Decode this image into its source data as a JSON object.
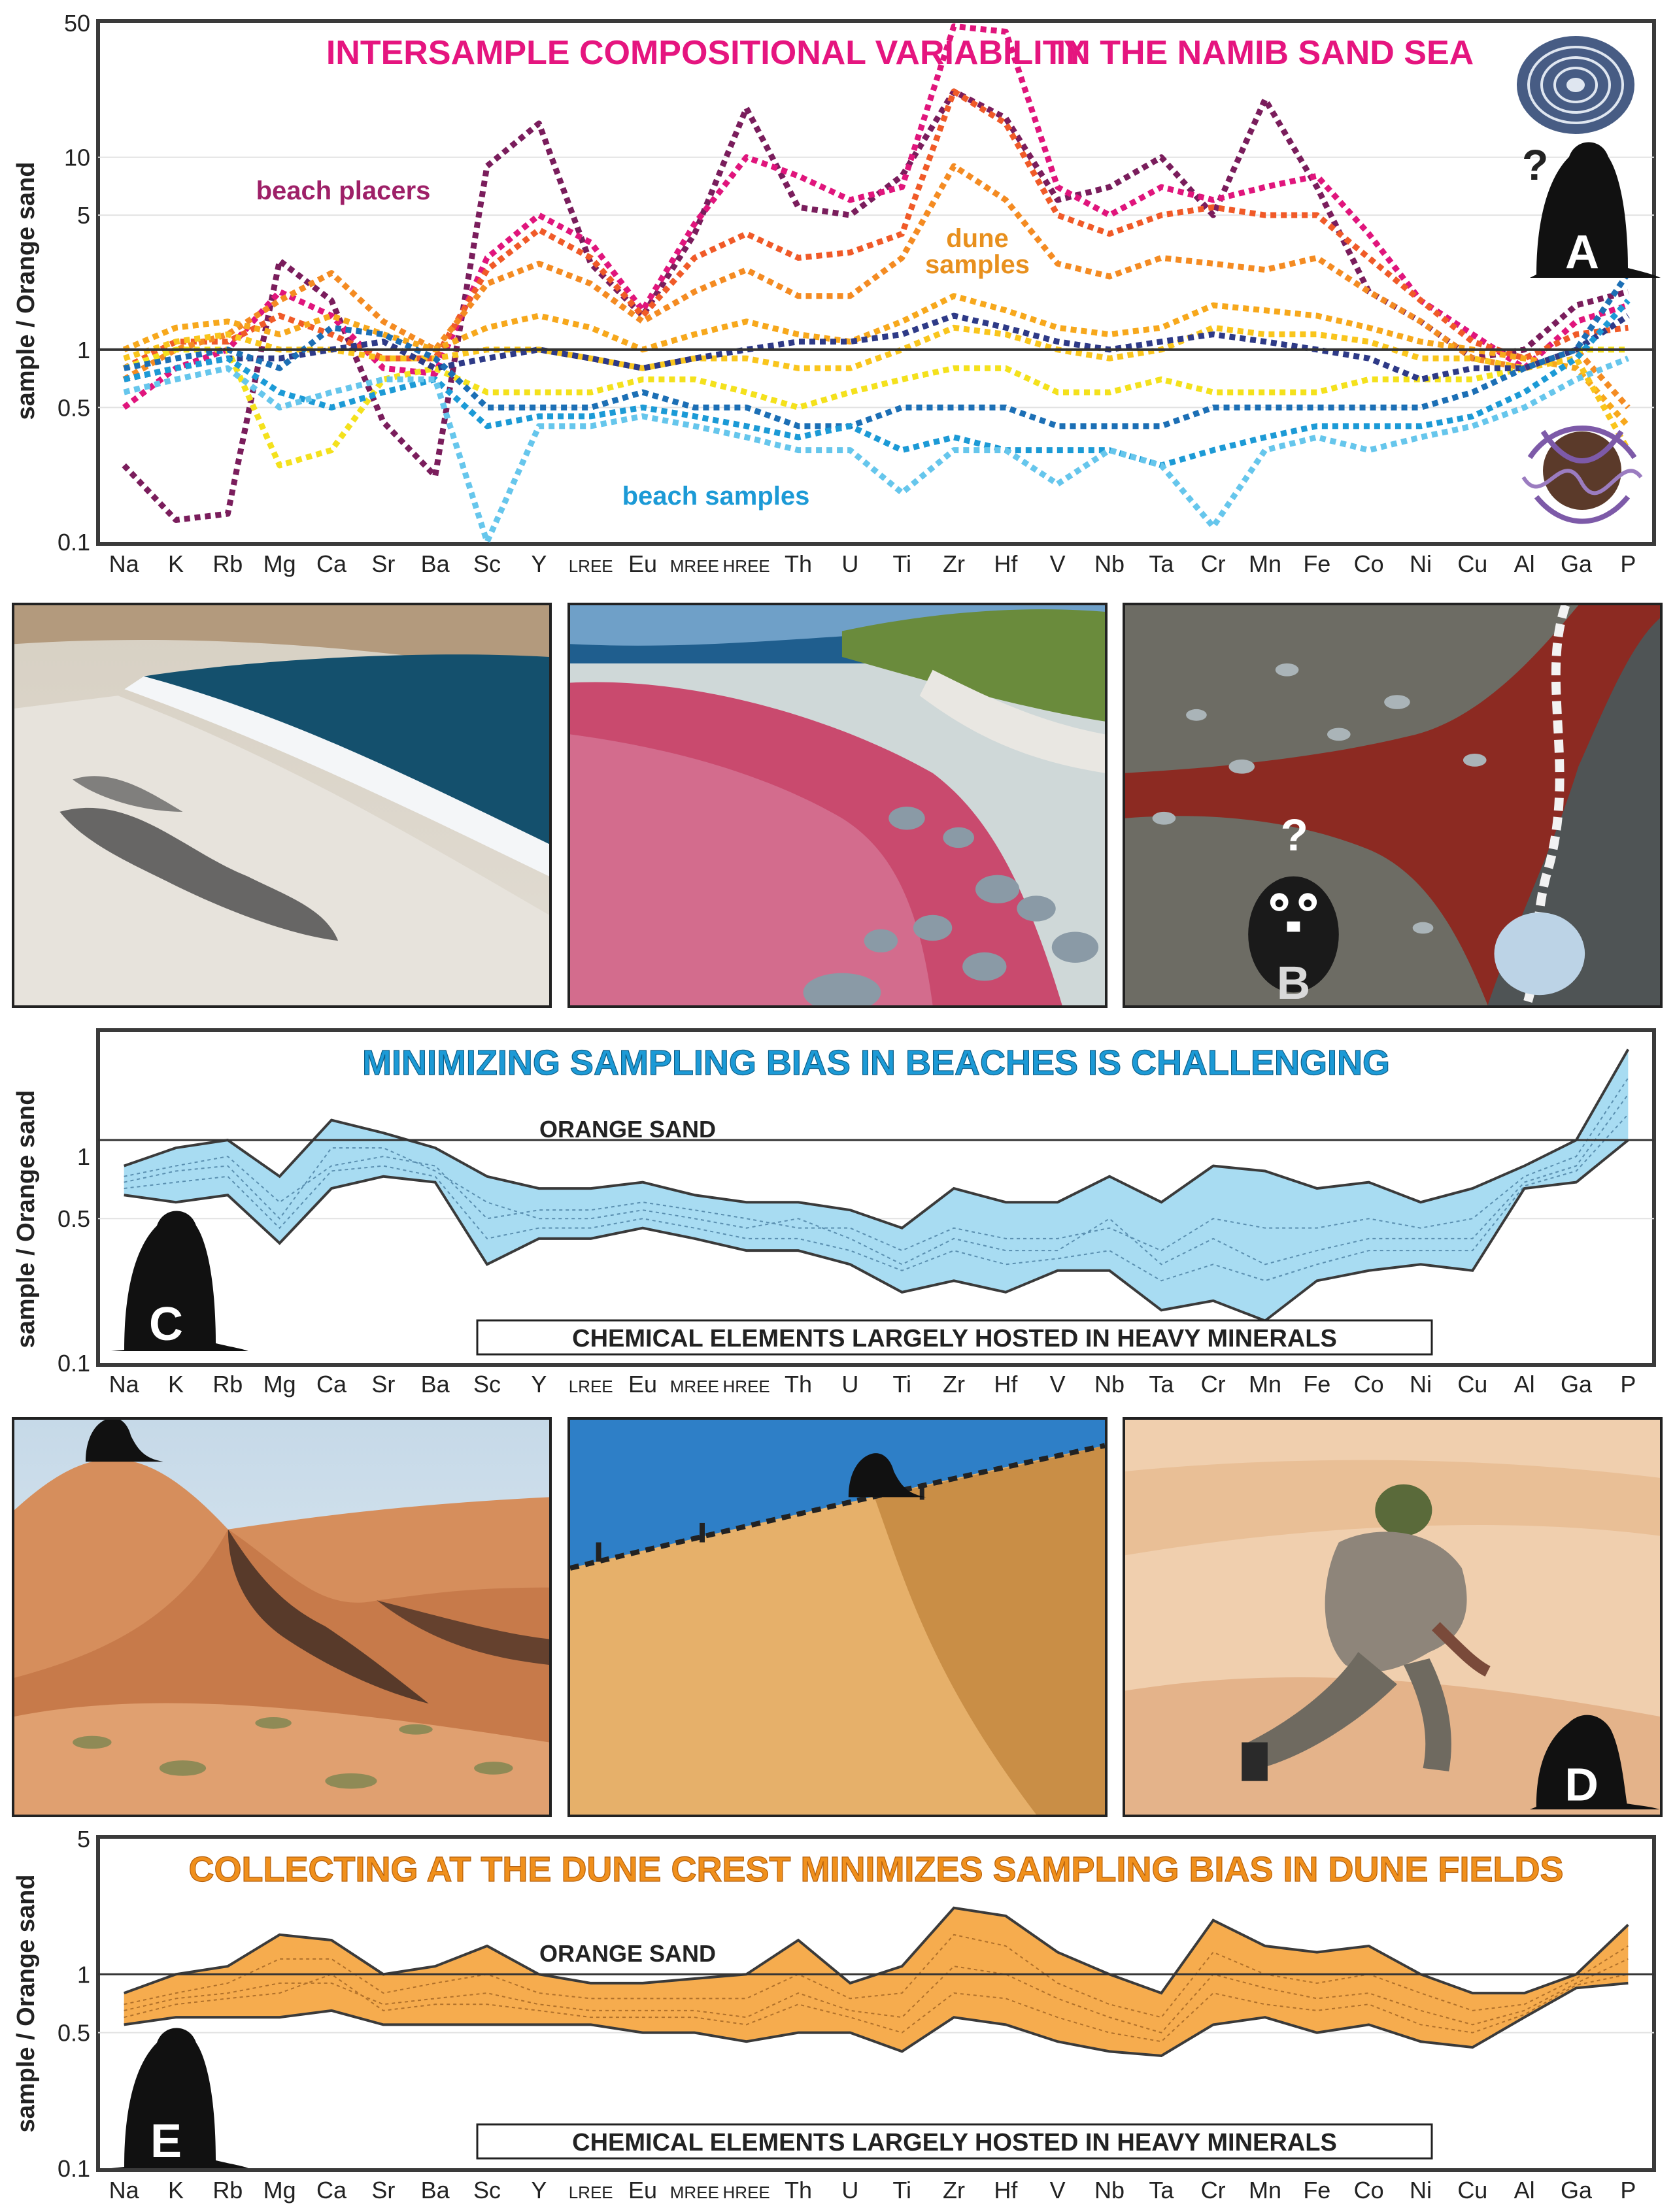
{
  "elements": [
    "Na",
    "K",
    "Rb",
    "Mg",
    "Ca",
    "Sr",
    "Ba",
    "Sc",
    "Y",
    "LREE",
    "Eu",
    "MREE",
    "HREE",
    "Th",
    "U",
    "Ti",
    "Zr",
    "Hf",
    "V",
    "Nb",
    "Ta",
    "Cr",
    "Mn",
    "Fe",
    "Co",
    "Ni",
    "Cu",
    "Al",
    "Ga",
    "P"
  ],
  "colors": {
    "title_pink": "#e5157f",
    "placers": "#7a1d5c",
    "dune": "#f0901c",
    "beach": "#1c9ad6",
    "envelope_blue": "#a8dcf2",
    "envelope_orange": "#f6ac4e"
  },
  "photos": [
    {
      "name": "beach-photo-1",
      "subject": "beach with dark placer streaks and surf"
    },
    {
      "name": "beach-photo-2",
      "subject": "red garnet placer beach with cobbles"
    },
    {
      "name": "beach-photo-3",
      "subject": "dark and red placer sand with cobbles",
      "label": "B",
      "mark": "?"
    },
    {
      "name": "dune-photo-1",
      "subject": "red dune field with dry grass"
    },
    {
      "name": "dune-photo-2",
      "subject": "dune crest with walkers"
    },
    {
      "name": "dune-photo-3",
      "subject": "geologist sampling dune sand",
      "label": "D"
    }
  ],
  "chart_data": [
    {
      "panel": "A",
      "type": "line",
      "title_left": "INTERSAMPLE COMPOSITIONAL VARIABILITY",
      "title_right": "IN THE NAMIB SAND SEA",
      "ylabel": "sample / Orange sand",
      "yscale": "log",
      "ylim": [
        0.1,
        50
      ],
      "yticks": [
        "0.1",
        "0.5",
        "1",
        "5",
        "10",
        "50"
      ],
      "reference_line": 1,
      "panel_label": "A",
      "question_mark": "?",
      "annotations": [
        {
          "text": "beach placers",
          "color": "#9e2068"
        },
        {
          "text": "dune",
          "color": "#e8901e"
        },
        {
          "text": "samples",
          "color": "#e8901e"
        },
        {
          "text": "beach samples",
          "color": "#1c9ad6"
        }
      ],
      "series": [
        {
          "color": "#7a1d5c",
          "values": [
            0.25,
            0.13,
            0.14,
            2.9,
            1.8,
            0.42,
            0.22,
            9,
            15,
            2.8,
            1.5,
            4,
            18,
            5.5,
            5,
            8,
            22,
            16,
            6,
            7,
            10,
            5,
            20,
            7,
            2,
            1.4,
            0.9,
            1.0,
            1.7,
            2.0
          ]
        },
        {
          "color": "#e0157c",
          "values": [
            0.5,
            0.8,
            1.0,
            2.0,
            1.5,
            0.8,
            0.75,
            3,
            5,
            3.6,
            1.6,
            4.5,
            10,
            8,
            6,
            7,
            48,
            45,
            7,
            5,
            7,
            6,
            7,
            8,
            4,
            1.8,
            1.2,
            0.8,
            1.4,
            1.7
          ]
        },
        {
          "color": "#f05a28",
          "values": [
            0.8,
            1.1,
            1.1,
            1.5,
            1.2,
            0.9,
            0.9,
            2.6,
            4.2,
            3.0,
            1.5,
            3,
            4,
            3,
            3.2,
            4,
            22,
            15,
            5,
            4,
            5,
            5.5,
            5,
            5,
            3,
            1.8,
            1.1,
            0.9,
            1.2,
            1.3
          ]
        },
        {
          "color": "#f48b22",
          "values": [
            0.7,
            1.0,
            1.2,
            1.8,
            2.5,
            1.4,
            1.0,
            2.2,
            2.8,
            2.2,
            1.4,
            2,
            2.6,
            1.9,
            1.9,
            3,
            9,
            6,
            2.8,
            2.4,
            3,
            2.8,
            2.6,
            3,
            2,
            1.4,
            0.9,
            0.8,
            1.0,
            0.5
          ]
        },
        {
          "color": "#f7a81c",
          "values": [
            1.0,
            1.3,
            1.4,
            1.2,
            1.5,
            1.2,
            1.0,
            1.3,
            1.5,
            1.3,
            1.0,
            1.2,
            1.4,
            1.2,
            1.1,
            1.4,
            1.9,
            1.6,
            1.3,
            1.2,
            1.3,
            1.7,
            1.6,
            1.5,
            1.3,
            1.1,
            1.0,
            0.9,
            0.8,
            0.4
          ]
        },
        {
          "color": "#f9c51c",
          "values": [
            0.9,
            1.1,
            1.2,
            1.0,
            1.0,
            0.9,
            0.9,
            1.0,
            1.0,
            0.9,
            0.8,
            0.9,
            0.9,
            0.8,
            0.8,
            1.0,
            1.3,
            1.2,
            1.0,
            0.9,
            1.0,
            1.3,
            1.2,
            1.2,
            1.1,
            0.9,
            0.9,
            0.8,
            0.9,
            0.3
          ]
        },
        {
          "color": "#f4e11c",
          "values": [
            0.8,
            1.0,
            1.0,
            0.25,
            0.3,
            0.7,
            0.8,
            0.6,
            0.6,
            0.6,
            0.7,
            0.7,
            0.6,
            0.5,
            0.6,
            0.7,
            0.8,
            0.8,
            0.6,
            0.6,
            0.7,
            0.6,
            0.6,
            0.6,
            0.7,
            0.7,
            0.7,
            0.8,
            1.0,
            1.0
          ]
        },
        {
          "color": "#2e3a87",
          "values": [
            0.7,
            0.8,
            0.9,
            0.9,
            1.0,
            1.1,
            0.8,
            0.9,
            1.0,
            0.9,
            0.8,
            0.9,
            1.0,
            1.1,
            1.1,
            1.2,
            1.5,
            1.3,
            1.1,
            1.0,
            1.1,
            1.2,
            1.1,
            1.0,
            0.9,
            0.7,
            0.8,
            0.8,
            1.0,
            1.5
          ]
        },
        {
          "color": "#1c6fb5",
          "values": [
            0.8,
            0.9,
            1.0,
            0.8,
            1.3,
            1.2,
            0.9,
            0.5,
            0.5,
            0.5,
            0.6,
            0.5,
            0.5,
            0.4,
            0.4,
            0.5,
            0.5,
            0.5,
            0.4,
            0.4,
            0.4,
            0.5,
            0.5,
            0.5,
            0.5,
            0.5,
            0.6,
            0.8,
            1.0,
            2.5
          ]
        },
        {
          "color": "#1c9ad6",
          "values": [
            0.7,
            0.8,
            0.9,
            0.6,
            0.5,
            0.6,
            0.7,
            0.4,
            0.45,
            0.45,
            0.5,
            0.45,
            0.4,
            0.35,
            0.4,
            0.3,
            0.35,
            0.3,
            0.3,
            0.3,
            0.25,
            0.3,
            0.35,
            0.4,
            0.4,
            0.4,
            0.45,
            0.6,
            0.9,
            1.8
          ]
        },
        {
          "color": "#66c6ec",
          "values": [
            0.6,
            0.7,
            0.8,
            0.5,
            0.6,
            0.7,
            0.7,
            0.1,
            0.4,
            0.4,
            0.45,
            0.4,
            0.35,
            0.3,
            0.3,
            0.18,
            0.3,
            0.3,
            0.2,
            0.3,
            0.25,
            0.12,
            0.3,
            0.35,
            0.3,
            0.35,
            0.4,
            0.5,
            0.7,
            0.9
          ]
        }
      ]
    },
    {
      "panel": "C",
      "type": "area",
      "title": "MINIMIZING SAMPLING BIAS IN BEACHES IS CHALLENGING",
      "ylabel": "sample / Orange sand",
      "yscale": "log",
      "ylim": [
        0.1,
        4
      ],
      "yticks": [
        "0.1",
        "0.5",
        "1"
      ],
      "reference_label": "ORANGE SAND",
      "reference_value": 1.2,
      "box_text": "CHEMICAL ELEMENTS LARGELY HOSTED IN HEAVY MINERALS",
      "panel_label": "C",
      "upper": [
        0.9,
        1.1,
        1.2,
        0.8,
        1.5,
        1.3,
        1.1,
        0.8,
        0.7,
        0.7,
        0.75,
        0.65,
        0.6,
        0.6,
        0.55,
        0.45,
        0.7,
        0.6,
        0.6,
        0.8,
        0.6,
        0.9,
        0.85,
        0.7,
        0.75,
        0.6,
        0.7,
        0.9,
        1.2,
        3.3
      ],
      "lower": [
        0.65,
        0.6,
        0.65,
        0.38,
        0.7,
        0.8,
        0.75,
        0.3,
        0.4,
        0.4,
        0.45,
        0.4,
        0.35,
        0.35,
        0.3,
        0.22,
        0.25,
        0.22,
        0.28,
        0.28,
        0.18,
        0.2,
        0.16,
        0.25,
        0.28,
        0.3,
        0.28,
        0.7,
        0.75,
        1.2
      ],
      "series": [
        [
          0.8,
          0.9,
          1.0,
          0.6,
          0.9,
          1.0,
          0.9,
          0.5,
          0.55,
          0.55,
          0.6,
          0.55,
          0.5,
          0.45,
          0.45,
          0.35,
          0.45,
          0.4,
          0.4,
          0.45,
          0.35,
          0.5,
          0.45,
          0.45,
          0.5,
          0.45,
          0.5,
          0.8,
          1.0,
          2.4
        ],
        [
          0.75,
          0.85,
          0.9,
          0.5,
          1.1,
          1.1,
          0.85,
          0.6,
          0.5,
          0.5,
          0.55,
          0.5,
          0.45,
          0.5,
          0.4,
          0.3,
          0.4,
          0.35,
          0.35,
          0.5,
          0.3,
          0.4,
          0.3,
          0.35,
          0.4,
          0.4,
          0.4,
          0.75,
          0.9,
          2.0
        ],
        [
          0.7,
          0.75,
          0.8,
          0.45,
          0.85,
          0.9,
          0.8,
          0.4,
          0.45,
          0.45,
          0.5,
          0.45,
          0.4,
          0.4,
          0.35,
          0.28,
          0.35,
          0.3,
          0.32,
          0.35,
          0.25,
          0.3,
          0.25,
          0.3,
          0.35,
          0.35,
          0.35,
          0.72,
          0.85,
          1.6
        ]
      ]
    },
    {
      "panel": "E",
      "type": "area",
      "title": "COLLECTING AT THE DUNE CREST MINIMIZES SAMPLING BIAS IN DUNE FIELDS",
      "ylabel": "sample / Orange sand",
      "yscale": "log",
      "ylim": [
        0.1,
        5
      ],
      "yticks": [
        "0.1",
        "0.5",
        "1",
        "5"
      ],
      "reference_label": "ORANGE SAND",
      "reference_value": 1,
      "box_text": "CHEMICAL ELEMENTS LARGELY HOSTED IN HEAVY MINERALS",
      "panel_label": "E",
      "upper": [
        0.8,
        1.0,
        1.1,
        1.6,
        1.5,
        1.0,
        1.1,
        1.4,
        1.0,
        0.9,
        0.9,
        0.95,
        1.0,
        1.5,
        0.9,
        1.1,
        2.2,
        2.0,
        1.3,
        1.0,
        0.8,
        1.9,
        1.4,
        1.3,
        1.4,
        1.0,
        0.8,
        0.8,
        1.0,
        1.8
      ],
      "lower": [
        0.55,
        0.6,
        0.6,
        0.6,
        0.65,
        0.55,
        0.55,
        0.55,
        0.55,
        0.55,
        0.5,
        0.5,
        0.45,
        0.5,
        0.5,
        0.4,
        0.6,
        0.55,
        0.45,
        0.4,
        0.38,
        0.55,
        0.6,
        0.5,
        0.55,
        0.45,
        0.42,
        0.6,
        0.85,
        0.9
      ],
      "series": [
        [
          0.7,
          0.8,
          0.9,
          1.2,
          1.2,
          0.8,
          0.9,
          1.0,
          0.8,
          0.75,
          0.75,
          0.75,
          0.75,
          1.0,
          0.75,
          0.8,
          1.6,
          1.4,
          0.9,
          0.7,
          0.6,
          1.3,
          1.0,
          0.9,
          1.0,
          0.8,
          0.65,
          0.7,
          0.95,
          1.4
        ],
        [
          0.65,
          0.75,
          0.8,
          0.9,
          0.9,
          0.7,
          0.75,
          0.8,
          0.7,
          0.65,
          0.65,
          0.65,
          0.6,
          0.8,
          0.65,
          0.6,
          1.1,
          1.0,
          0.75,
          0.6,
          0.5,
          1.0,
          0.85,
          0.75,
          0.8,
          0.65,
          0.55,
          0.65,
          0.9,
          1.2
        ],
        [
          0.6,
          0.7,
          0.75,
          0.8,
          1.0,
          0.65,
          0.7,
          0.7,
          0.65,
          0.6,
          0.6,
          0.6,
          0.55,
          0.7,
          0.6,
          0.5,
          0.8,
          0.75,
          0.6,
          0.5,
          0.45,
          0.8,
          0.7,
          0.65,
          0.7,
          0.55,
          0.5,
          0.62,
          0.88,
          1.0
        ]
      ]
    }
  ]
}
